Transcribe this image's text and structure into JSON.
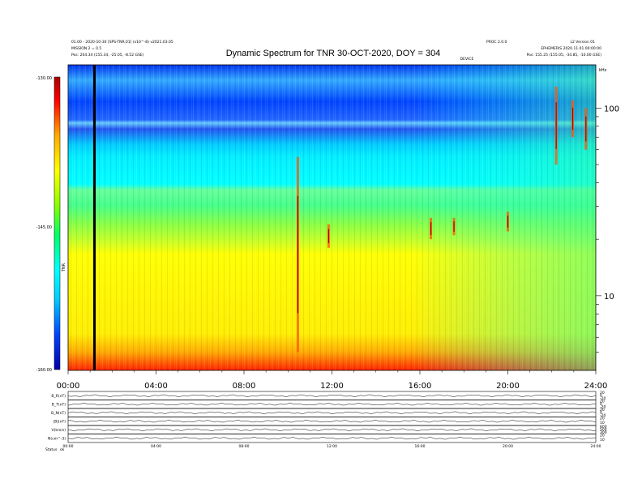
{
  "chart_data": {
    "type": "heatmap",
    "title": "Dynamic Spectrum for TNR 30-OCT-2020, DOY = 304",
    "header_left": [
      "01.00 - 2020-10-30 [SPS-TNR.01] (x10^-8) v2021.03.05",
      "MISSION 2 = 0.5",
      "Pos:     204.34 (155.34, -25.05, -8.52 GSE)"
    ],
    "header_right": [
      "L2 Version 01",
      "EPHEMERIS 2020.11.01 00:00:00",
      "Pos:     155.25 (155.05, -34.85, -10.00 GSE)"
    ],
    "header_right_short": "PROC 2.0.0",
    "x_title": "DEVICE",
    "x_ticks": [
      "00:00",
      "04:00",
      "08:00",
      "12:00",
      "16:00",
      "20:00",
      "24:00"
    ],
    "x_range_hours": [
      0,
      24
    ],
    "y_scale": "log",
    "y_range_khz": [
      4,
      170
    ],
    "y_ticks": [
      {
        "value": 100,
        "label": "100"
      },
      {
        "value": 10,
        "label": "10"
      }
    ],
    "y_unit_label": "kHz",
    "colorbar": {
      "label": "TNR",
      "ticks": [
        "-130.00",
        "-145.00",
        "-160.00"
      ],
      "range": [
        -160,
        -130
      ],
      "colors": [
        "#0000aa",
        "#0044ff",
        "#00ccff",
        "#00ffff",
        "#00ff66",
        "#88ff00",
        "#ffff00",
        "#ffaa00",
        "#ff0000",
        "#aa0000"
      ]
    },
    "data_gap_hours": 1.2,
    "radio_bursts": [
      {
        "start_h": 10.45,
        "khz_low": 5,
        "khz_high": 55
      },
      {
        "start_h": 11.85,
        "khz_low": 18,
        "khz_high": 24
      },
      {
        "start_h": 16.5,
        "khz_low": 20,
        "khz_high": 26
      },
      {
        "start_h": 17.55,
        "khz_low": 21,
        "khz_high": 26
      },
      {
        "start_h": 20.0,
        "khz_low": 22,
        "khz_high": 28
      },
      {
        "start_h": 22.2,
        "khz_low": 50,
        "khz_high": 130
      },
      {
        "start_h": 22.95,
        "khz_low": 70,
        "khz_high": 110
      },
      {
        "start_h": 23.55,
        "khz_low": 60,
        "khz_high": 100
      }
    ],
    "panels": [
      {
        "label": "B_R(nT)",
        "right_ticks": [
          "20",
          "0",
          "-20"
        ]
      },
      {
        "label": "B_T(nT)",
        "right_ticks": [
          "20",
          "0",
          "-20"
        ]
      },
      {
        "label": "B_N(nT)",
        "right_ticks": [
          "20",
          "0",
          "-20"
        ]
      },
      {
        "label": "|B|(nT)",
        "right_ticks": [
          "20",
          "10"
        ]
      },
      {
        "label": "V(km/s)",
        "right_ticks": [
          "800",
          "500",
          "300"
        ]
      },
      {
        "label": "N(cm^-3)",
        "right_ticks": [
          "20",
          "10"
        ]
      }
    ],
    "bottom_x_ticks": [
      "00:00",
      "04:00",
      "08:00",
      "12:00",
      "16:00",
      "20:00",
      "24:00"
    ],
    "footer_label": "Status",
    "footer_value": "ok"
  }
}
